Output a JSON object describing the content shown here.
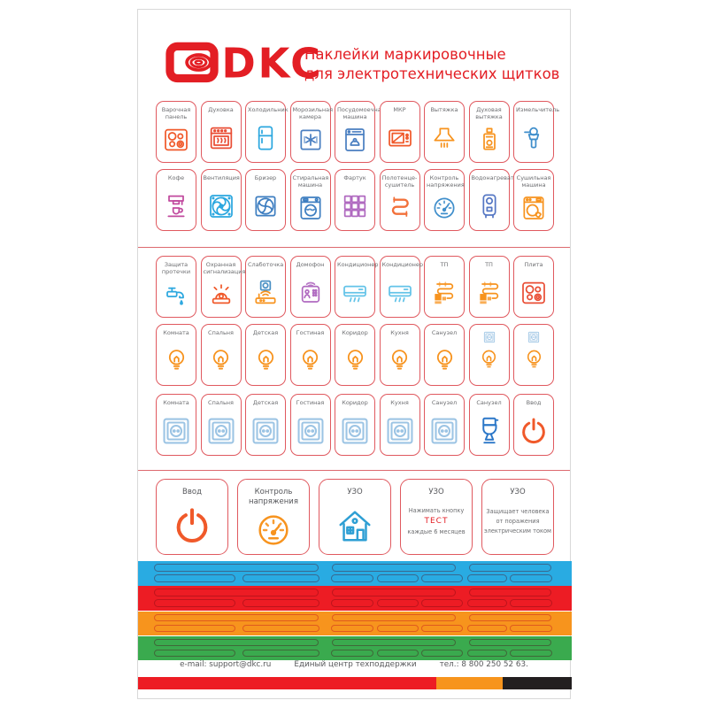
{
  "header": {
    "logo_text": "DKC",
    "title_line1": "Наклейки маркировочные",
    "title_line2": "для электротехнических щитков"
  },
  "brand": {
    "red": "#e31e24",
    "sticker_border": "#e0595f",
    "label_gray": "#6d6e71"
  },
  "sticker_rows": [
    [
      {
        "label": "Варочная панель",
        "icon": "hob",
        "color": "#f0592a"
      },
      {
        "label": "Духовка",
        "icon": "oven",
        "color": "#e94e35"
      },
      {
        "label": "Холодильник",
        "icon": "fridge",
        "color": "#2ba7df"
      },
      {
        "label": "Морозильная камера",
        "icon": "freezer",
        "color": "#4a7fc1"
      },
      {
        "label": "Посудомоечная машина",
        "icon": "dishwasher",
        "color": "#4a7fc1"
      },
      {
        "label": "МКР",
        "icon": "microwave",
        "color": "#f0592a"
      },
      {
        "label": "Вытяжка",
        "icon": "hood",
        "color": "#f7931e"
      },
      {
        "label": "Духовая вытяжка",
        "icon": "gascolumn",
        "color": "#f7931e"
      },
      {
        "label": "Измельчитель",
        "icon": "grinder",
        "color": "#3f8ecb"
      }
    ],
    [
      {
        "label": "Кофе",
        "icon": "coffee",
        "color": "#c14a9e"
      },
      {
        "label": "Вентиляция",
        "icon": "fan",
        "color": "#2ba7df"
      },
      {
        "label": "Бризер",
        "icon": "breezer",
        "color": "#3f7fc1"
      },
      {
        "label": "Стиральная машина",
        "icon": "washer",
        "color": "#3f7fc1"
      },
      {
        "label": "Фартук",
        "icon": "tiles",
        "color": "#b06ac0"
      },
      {
        "label": "Полотенце-сушитель",
        "icon": "towel",
        "color": "#f2703a"
      },
      {
        "label": "Контроль напряжения",
        "icon": "gauge",
        "color": "#3f8ecb"
      },
      {
        "label": "Водонагреватель",
        "icon": "heater",
        "color": "#5577c4"
      },
      {
        "label": "Сушильная машина",
        "icon": "dryer",
        "color": "#f7931e"
      }
    ],
    [
      {
        "label": "Защита протечки",
        "icon": "faucet",
        "color": "#2ba7df"
      },
      {
        "label": "Охранная сигнализация",
        "icon": "alarm",
        "color": "#f0592a"
      },
      {
        "label": "Слаботочка",
        "icon": "router",
        "color": "#f7931e"
      },
      {
        "label": "Домофон",
        "icon": "intercom",
        "color": "#b06ac0"
      },
      {
        "label": "Кондиционер",
        "icon": "ac",
        "color": "#63c3e8"
      },
      {
        "label": "Кондиционер",
        "icon": "ac",
        "color": "#63c3e8"
      },
      {
        "label": "ТП",
        "icon": "tp",
        "color": "#f7931e"
      },
      {
        "label": "ТП",
        "icon": "tp",
        "color": "#f7931e"
      },
      {
        "label": "Плита",
        "icon": "hob",
        "color": "#e94e35"
      }
    ],
    [
      {
        "label": "Комната",
        "icon": "lamp",
        "color": "#f7931e"
      },
      {
        "label": "Спальня",
        "icon": "lamp",
        "color": "#f7931e"
      },
      {
        "label": "Детская",
        "icon": "lamp",
        "color": "#f7931e"
      },
      {
        "label": "Гостиная",
        "icon": "lamp",
        "color": "#f7931e"
      },
      {
        "label": "Коридор",
        "icon": "lamp",
        "color": "#f7931e"
      },
      {
        "label": "Кухня",
        "icon": "lamp",
        "color": "#f7931e"
      },
      {
        "label": "Санузел",
        "icon": "lamp",
        "color": "#f7931e"
      },
      {
        "label": "",
        "icon": "socket-lamp",
        "color": "#f7931e"
      },
      {
        "label": "",
        "icon": "socket-lamp",
        "color": "#f7931e"
      }
    ],
    [
      {
        "label": "Комната",
        "icon": "socket",
        "color": "#9cc4e4"
      },
      {
        "label": "Спальня",
        "icon": "socket",
        "color": "#9cc4e4"
      },
      {
        "label": "Детская",
        "icon": "socket",
        "color": "#9cc4e4"
      },
      {
        "label": "Гостиная",
        "icon": "socket",
        "color": "#9cc4e4"
      },
      {
        "label": "Коридор",
        "icon": "socket",
        "color": "#9cc4e4"
      },
      {
        "label": "Кухня",
        "icon": "socket",
        "color": "#9cc4e4"
      },
      {
        "label": "Санузел",
        "icon": "socket",
        "color": "#9cc4e4"
      },
      {
        "label": "Санузел",
        "icon": "toilet",
        "color": "#2b77c8"
      },
      {
        "label": "Ввод",
        "icon": "power",
        "color": "#f0592a"
      }
    ]
  ],
  "big_stickers": [
    {
      "label": "Ввод",
      "icon": "power",
      "color": "#f0592a"
    },
    {
      "label": "Контроль напряжения",
      "icon": "gauge",
      "color": "#f7931e"
    },
    {
      "label": "УЗО",
      "icon": "house",
      "color": "#2e9fd4"
    },
    {
      "label": "УЗО",
      "lines": [
        {
          "text": "Нажимать кнопку",
          "style": "gray"
        },
        {
          "text": "ТЕСТ",
          "style": "red"
        },
        {
          "text": "каждые 6 месяцев",
          "style": "gray"
        }
      ]
    },
    {
      "label": "УЗО",
      "lines": [
        {
          "text": "Защищает человека",
          "style": "gray"
        },
        {
          "text": "от поражения",
          "style": "gray"
        },
        {
          "text": "электрическим током",
          "style": "gray"
        }
      ]
    }
  ],
  "bands": [
    {
      "name": "blue-band",
      "fill": "#29abe2",
      "stroke": "rgba(70,50,75,0.55)"
    },
    {
      "name": "red-band",
      "fill": "#ed1c24",
      "stroke": "rgba(130,10,20,0.45)"
    },
    {
      "name": "orange-band",
      "fill": "#f7941d",
      "stroke": "#e05a1e"
    },
    {
      "name": "green-band",
      "fill": "#3aaa4e",
      "stroke": "rgba(70,50,40,0.55)"
    }
  ],
  "footer": {
    "email": "e-mail: support@dkc.ru",
    "support": "Единый центр техподдержки",
    "phone": "тел.: 8 800 250 52 63."
  },
  "footer_bar": [
    {
      "name": "red",
      "color": "#ed1c24"
    },
    {
      "name": "orange",
      "color": "#f7941d"
    },
    {
      "name": "black",
      "color": "#231f20"
    }
  ]
}
